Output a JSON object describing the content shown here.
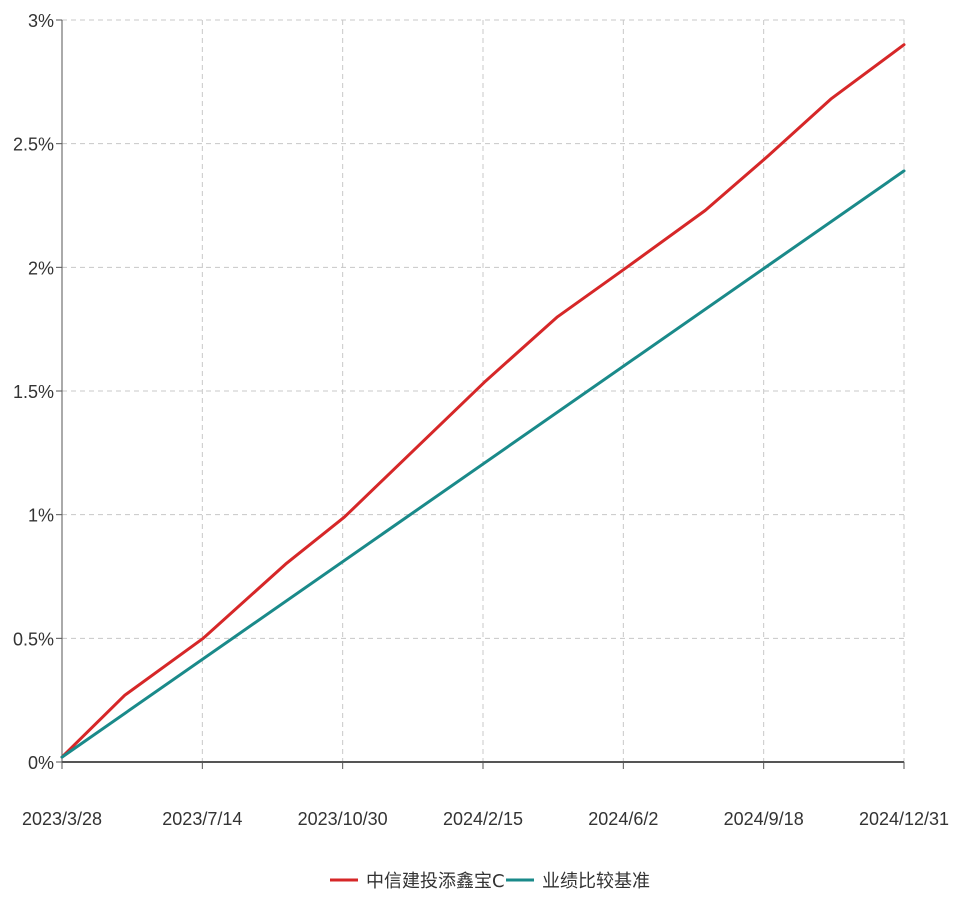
{
  "chart_data": {
    "type": "line",
    "title": "",
    "xlabel": "",
    "ylabel": "",
    "x_tick_labels": [
      "2023/3/28",
      "2023/7/14",
      "2023/10/30",
      "2024/2/15",
      "2024/6/2",
      "2024/9/18",
      "2024/12/31"
    ],
    "y_tick_labels": [
      "0%",
      "0.5%",
      "1%",
      "1.5%",
      "2%",
      "2.5%",
      "3%"
    ],
    "y_ticks": [
      0,
      0.5,
      1,
      1.5,
      2,
      2.5,
      3
    ],
    "ylim": [
      0,
      3
    ],
    "xlim": [
      "2023-03-28",
      "2024-12-31"
    ],
    "grid": true,
    "legend_position": "bottom-center",
    "series": [
      {
        "name": "中信建投添鑫宝C",
        "color": "#d62728",
        "x": [
          "2023-03-28",
          "2023-05-15",
          "2023-07-14",
          "2023-09-15",
          "2023-10-30",
          "2023-12-20",
          "2024-02-15",
          "2024-04-10",
          "2024-06-02",
          "2024-08-01",
          "2024-09-18",
          "2024-11-05",
          "2024-12-31"
        ],
        "y": [
          0.02,
          0.27,
          0.5,
          0.8,
          0.99,
          1.25,
          1.54,
          1.8,
          2.0,
          2.23,
          2.45,
          2.68,
          2.9
        ]
      },
      {
        "name": "业绩比较基准",
        "color": "#1a8a8a",
        "x": [
          "2023-03-28",
          "2024-12-31"
        ],
        "y": [
          0.02,
          2.39
        ]
      }
    ]
  }
}
